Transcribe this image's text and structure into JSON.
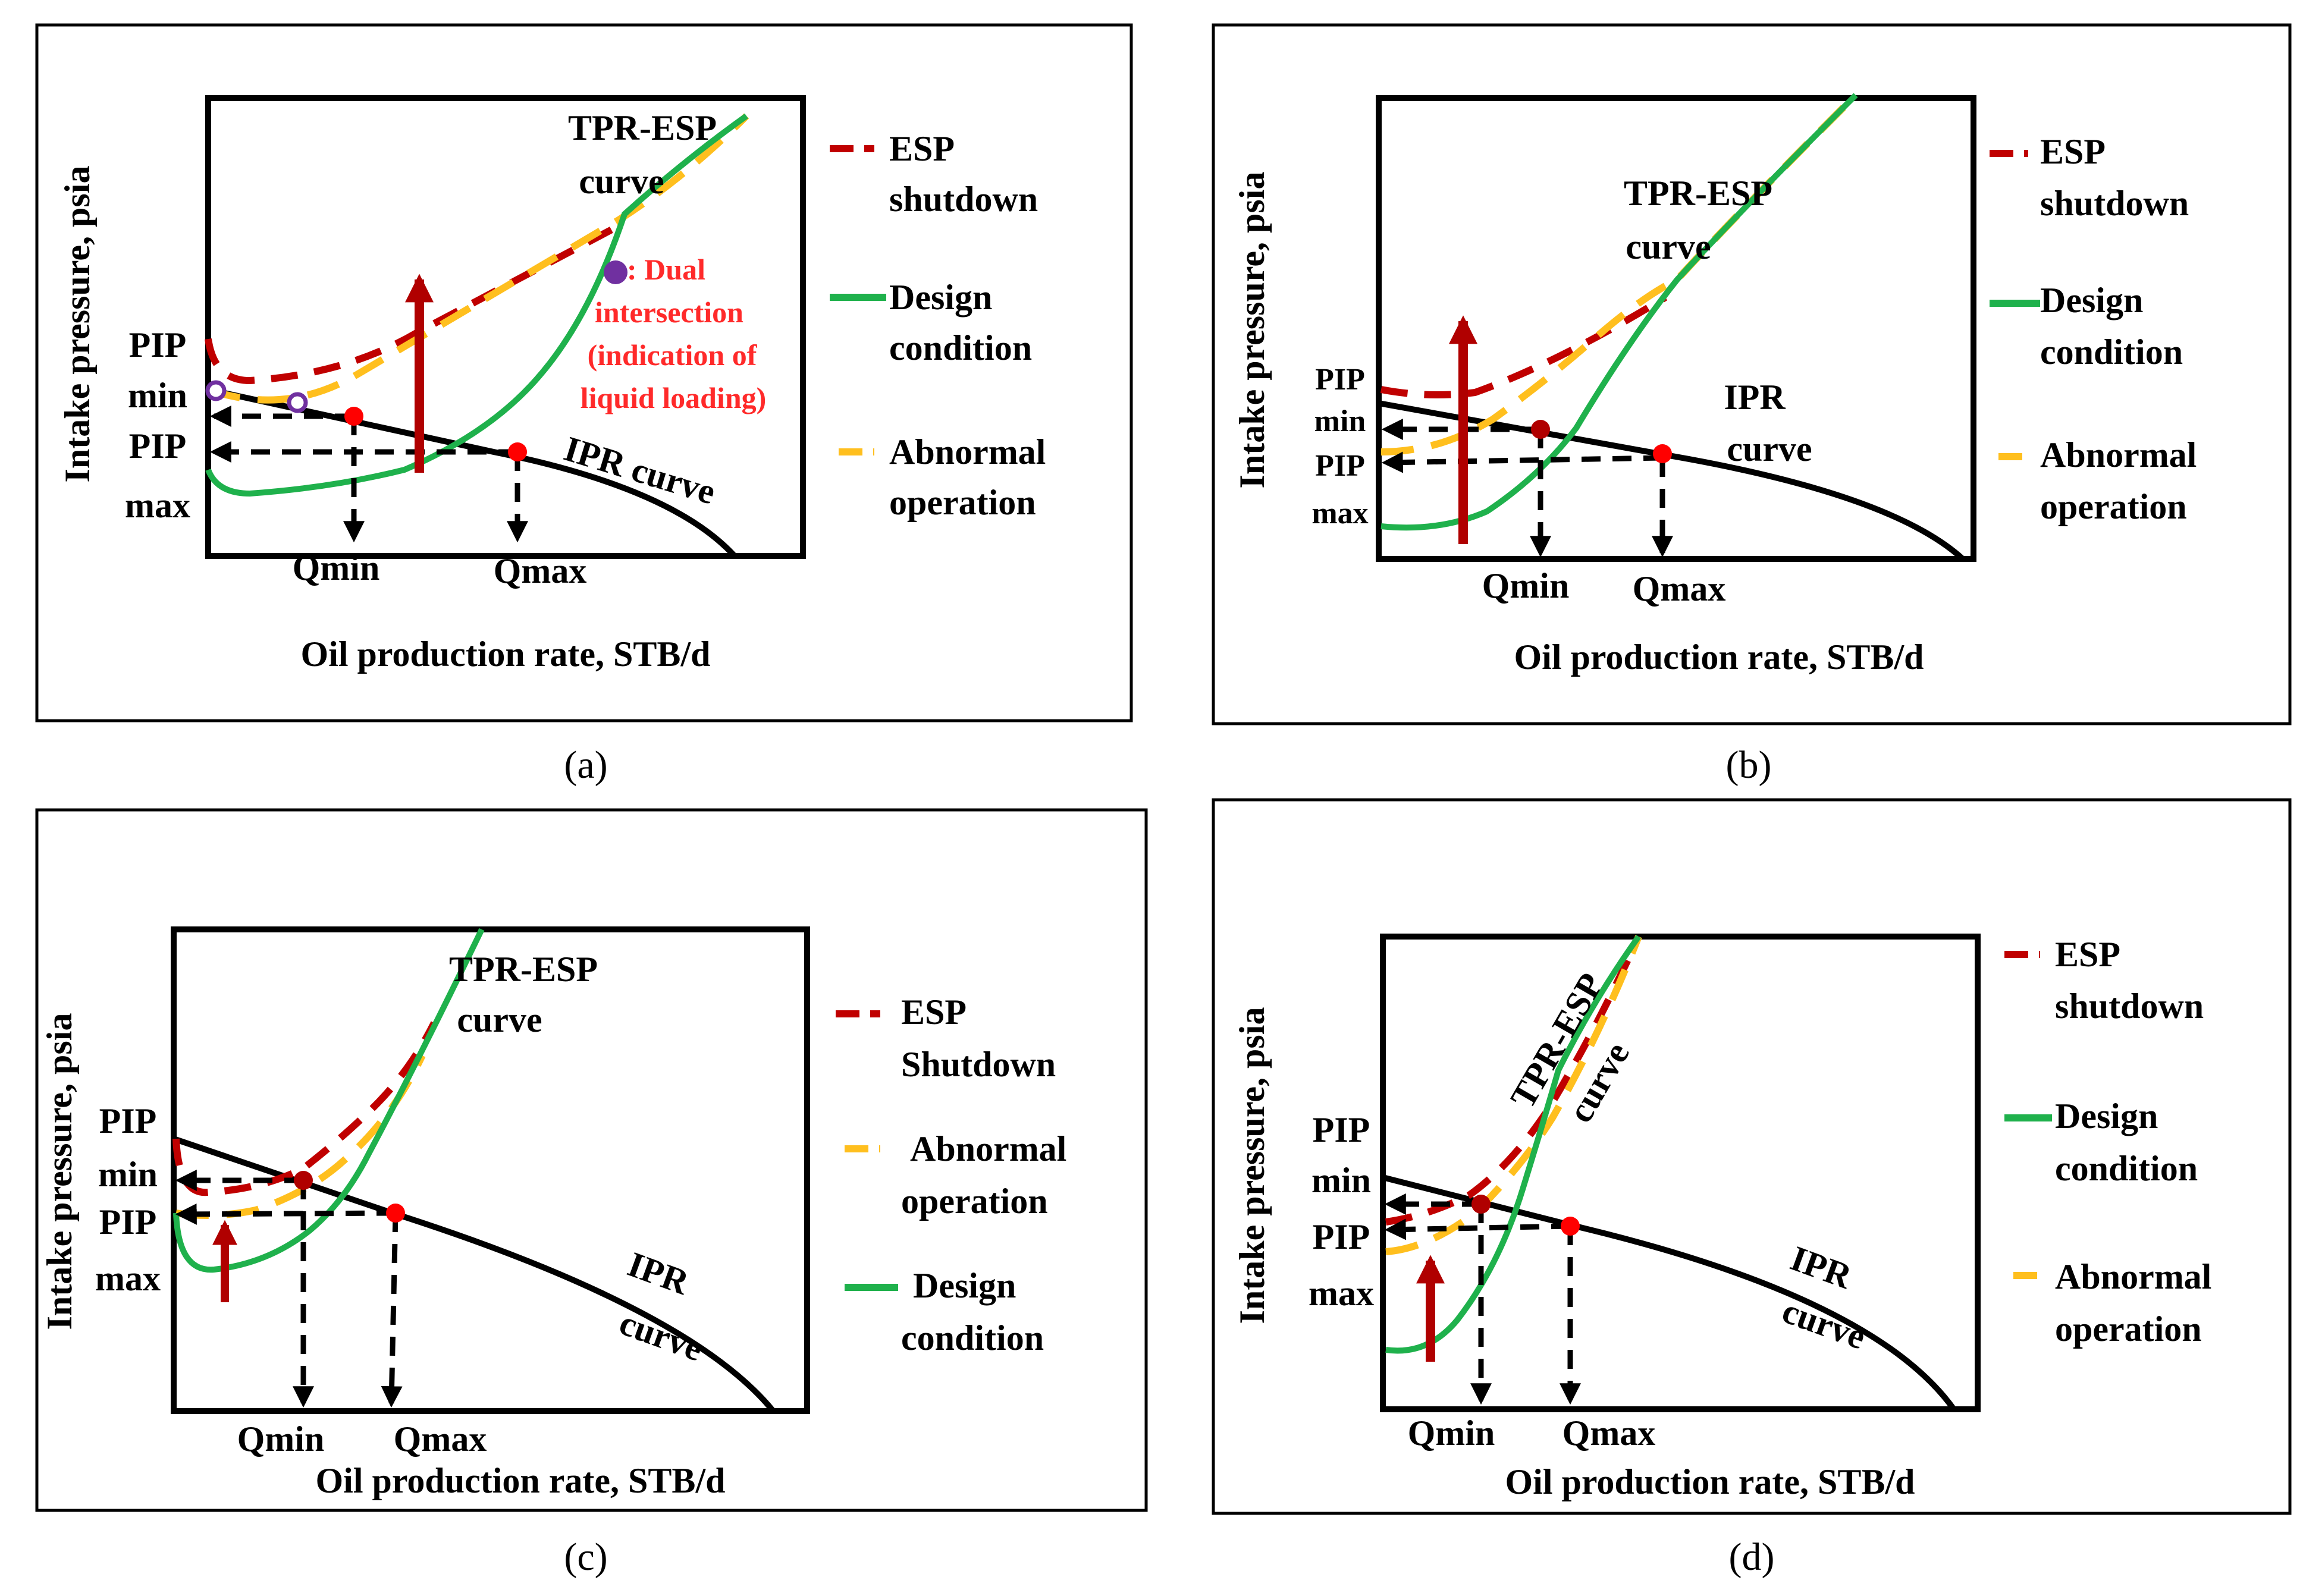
{
  "colors": {
    "esp_shutdown": "#c00000",
    "design": "#1fb14c",
    "abnormal": "#ffbf1e",
    "marker": "#ff0000",
    "dual": "#7030a0",
    "arrow": "#b00000"
  },
  "panels": [
    {
      "caption": "(a)",
      "y_label": "Intake pressure, psia",
      "x_label": "Oil production rate, STB/d",
      "pip_min_1": "PIP",
      "pip_min_2": "min",
      "pip_max_1": "PIP",
      "pip_max_2": "max",
      "qmin": "Qmin",
      "qmax": "Qmax",
      "tpr_1": "TPR-ESP",
      "tpr_2": "curve",
      "ipr_1": "IPR curve",
      "ipr_2": "",
      "legend": [
        {
          "key": "esp_shutdown",
          "line1": "ESP",
          "line2": "shutdown"
        },
        {
          "key": "design",
          "line1": "Design",
          "line2": "condition"
        },
        {
          "key": "abnormal",
          "line1": "Abnormal",
          "line2": "operation"
        }
      ],
      "note": [
        ": Dual",
        "intersection",
        "(indication of",
        "liquid loading)"
      ]
    },
    {
      "caption": "(b)",
      "y_label": "Intake pressure, psia",
      "x_label": "Oil production rate, STB/d",
      "pip_min_1": "PIP",
      "pip_min_2": "min",
      "pip_max_1": "PIP",
      "pip_max_2": "max",
      "qmin": "Qmin",
      "qmax": "Qmax",
      "tpr_1": "TPR-ESP",
      "tpr_2": "curve",
      "ipr_1": "IPR",
      "ipr_2": "curve",
      "legend": [
        {
          "key": "esp_shutdown",
          "line1": "ESP",
          "line2": "shutdown"
        },
        {
          "key": "design",
          "line1": "Design",
          "line2": "condition"
        },
        {
          "key": "abnormal",
          "line1": "Abnormal",
          "line2": "operation"
        }
      ]
    },
    {
      "caption": "(c)",
      "y_label": "Intake pressure, psia",
      "x_label": "Oil production rate, STB/d",
      "pip_min_1": "PIP",
      "pip_min_2": "min",
      "pip_max_1": "PIP",
      "pip_max_2": "max",
      "qmin": "Qmin",
      "qmax": "Qmax",
      "tpr_1": "TPR-ESP",
      "tpr_2": "curve",
      "ipr_1": "IPR",
      "ipr_2": "curve",
      "legend": [
        {
          "key": "esp_shutdown",
          "line1": "ESP",
          "line2": "Shutdown"
        },
        {
          "key": "abnormal",
          "line1": "Abnormal",
          "line2": "operation"
        },
        {
          "key": "design",
          "line1": "Design",
          "line2": "condition"
        }
      ]
    },
    {
      "caption": "(d)",
      "y_label": "Intake pressure, psia",
      "x_label": "Oil production rate, STB/d",
      "pip_min_1": "PIP",
      "pip_min_2": "min",
      "pip_max_1": "PIP",
      "pip_max_2": "max",
      "qmin": "Qmin",
      "qmax": "Qmax",
      "tpr_1": "TPR-ESP",
      "tpr_2": "curve",
      "ipr_1": "IPR",
      "ipr_2": "curve",
      "legend": [
        {
          "key": "esp_shutdown",
          "line1": "ESP",
          "line2": "shutdown"
        },
        {
          "key": "design",
          "line1": "Design",
          "line2": "condition"
        },
        {
          "key": "abnormal",
          "line1": "Abnormal",
          "line2": "operation"
        }
      ]
    }
  ]
}
